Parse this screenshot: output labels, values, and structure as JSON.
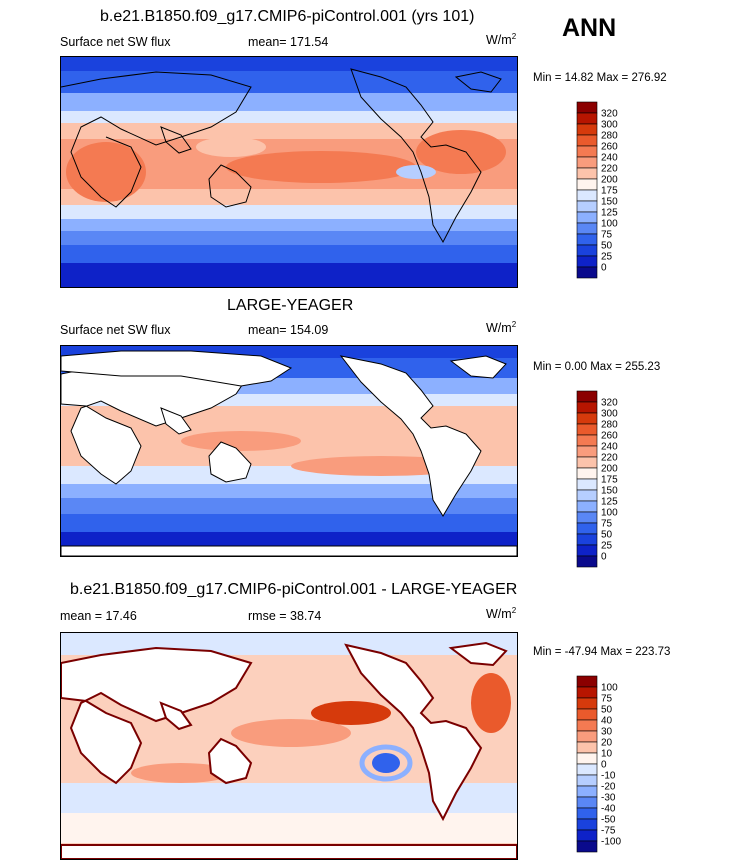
{
  "season": "ANN",
  "panels": [
    {
      "title": "b.e21.B1850.f09_g17.CMIP6-piControl.001 (yrs 101)",
      "left_label": "Surface net SW flux",
      "center_label": "mean= 171.54",
      "units": "W/m",
      "units_sup": "2",
      "minmax": "Min =  14.82 Max = 276.92",
      "colorbar": {
        "labels": [
          "320",
          "300",
          "280",
          "260",
          "240",
          "220",
          "200",
          "175",
          "150",
          "125",
          "100",
          "75",
          "50",
          "25",
          "0"
        ],
        "colors": [
          "#8b0000",
          "#b71500",
          "#d63a0c",
          "#ea5a2c",
          "#f47a52",
          "#f99c7d",
          "#fcc3ab",
          "#fff4ee",
          "#dbe8ff",
          "#b6ceff",
          "#8cb0ff",
          "#5a87f5",
          "#3062ec",
          "#1a42dd",
          "#0e22c8",
          "#0a0a8c"
        ]
      },
      "land_masked": false,
      "map_colors": {
        "ocean_base": "#3a66e8",
        "land": "#f5a585"
      }
    },
    {
      "title": "LARGE-YEAGER",
      "left_label": "Surface net SW flux",
      "center_label": "mean= 154.09",
      "units": "W/m",
      "units_sup": "2",
      "minmax": "Min =   0.00 Max = 255.23",
      "colorbar": {
        "labels": [
          "320",
          "300",
          "280",
          "260",
          "240",
          "220",
          "200",
          "175",
          "150",
          "125",
          "100",
          "75",
          "50",
          "25",
          "0"
        ],
        "colors": [
          "#8b0000",
          "#b71500",
          "#d63a0c",
          "#ea5a2c",
          "#f47a52",
          "#f99c7d",
          "#fcc3ab",
          "#fff4ee",
          "#dbe8ff",
          "#b6ceff",
          "#8cb0ff",
          "#5a87f5",
          "#3062ec",
          "#1a42dd",
          "#0e22c8",
          "#0a0a8c"
        ]
      },
      "land_masked": true,
      "map_colors": {
        "ocean_base": "#3a66e8",
        "land": "#ffffff"
      }
    },
    {
      "title": "b.e21.B1850.f09_g17.CMIP6-piControl.001 - LARGE-YEAGER",
      "left_label": "mean =  17.46",
      "center_label": "rmse =  38.74",
      "units": "W/m",
      "units_sup": "2",
      "minmax": "Min = -47.94 Max = 223.73",
      "colorbar": {
        "labels": [
          "100",
          "75",
          "50",
          "40",
          "30",
          "20",
          "10",
          "0",
          "-10",
          "-20",
          "-30",
          "-40",
          "-50",
          "-75",
          "-100"
        ],
        "colors": [
          "#8b0000",
          "#b71500",
          "#d63a0c",
          "#ea5a2c",
          "#f47a52",
          "#f99c7d",
          "#fcc3ab",
          "#fff4ee",
          "#dbe8ff",
          "#b6ceff",
          "#8cb0ff",
          "#5a87f5",
          "#3062ec",
          "#1a42dd",
          "#0e22c8",
          "#0a0a8c"
        ]
      },
      "land_masked": true,
      "map_colors": {
        "ocean_base": "#fcd0bd",
        "land": "#ffffff"
      }
    }
  ]
}
